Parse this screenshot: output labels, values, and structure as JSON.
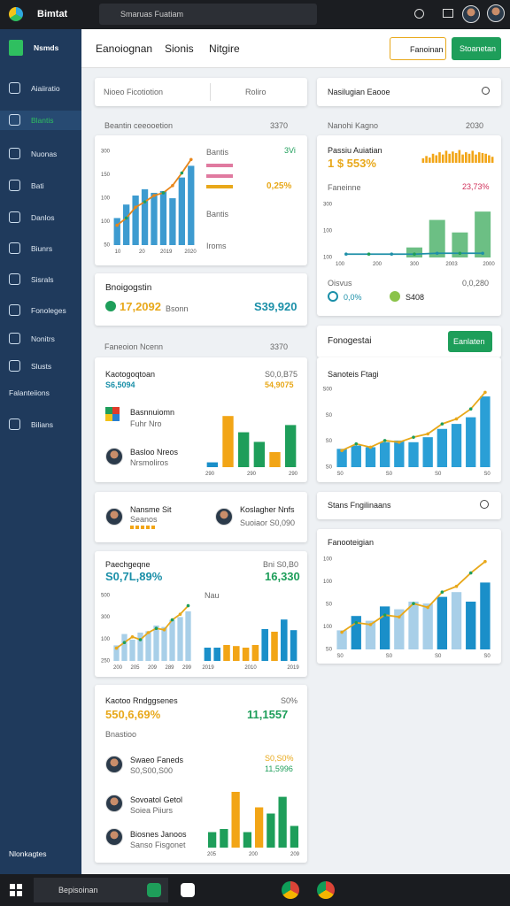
{
  "topbar": {
    "app": "Bimtat",
    "search": "Smaruas Fuatiam"
  },
  "sidebar": {
    "title": "Nsmds",
    "items": [
      "Aiaiiratio",
      "Blantis",
      "Nuonas",
      "Bati",
      "Danlos",
      "Biunrs",
      "Sisrals",
      "Fonoleges",
      "Nonitrs",
      "Slusts",
      "Falanteiions",
      "Bilians"
    ],
    "footer": "Nlonkagtes"
  },
  "header": {
    "tabs": [
      "Eanoiognan",
      "Sionis",
      "Nitgire"
    ],
    "button_outline": "Fanoinan",
    "button_primary": "Stoanetan"
  },
  "left": {
    "filter": {
      "field": "Nioeo Ficotiotion",
      "select": "Roliro"
    },
    "section1": {
      "title": "Beantin ceeooetion",
      "value": "3370"
    },
    "card1": {
      "legend": [
        "Bantis",
        "Bantis",
        "Iroms"
      ],
      "value": "0,25%",
      "kpi": "3Vi",
      "chart": {
        "bars": [
          30,
          45,
          55,
          62,
          58,
          60,
          52,
          75,
          88
        ],
        "bar_color": "#3d9bd0",
        "line": [
          22,
          30,
          42,
          48,
          55,
          58,
          66,
          80,
          95
        ],
        "line_color": "#e8861a",
        "ylim": [
          0,
          110
        ],
        "yticks": [
          "300",
          "150",
          "100",
          "100",
          "50"
        ],
        "xticks": [
          "10",
          "20",
          "2019",
          "2020"
        ]
      }
    },
    "card2": {
      "title": "Bnoigogstin",
      "value": "17,2092",
      "note": "Bsonn",
      "amount": "S39,920"
    },
    "section2": {
      "title": "Faneoion Ncenn",
      "value": "3370"
    },
    "card3": {
      "title": "Kaotogoqtoan",
      "value": "S6,5094",
      "right_label": "S0,0,B75",
      "right_value": "54,9075",
      "items": [
        {
          "name": "Basnnuiomn",
          "sub": "Fuhr Nro"
        },
        {
          "name": "Basloo Nreos",
          "sub": "Nrsmoliros"
        }
      ],
      "chart": {
        "bars": [
          8,
          85,
          58,
          42,
          25,
          70
        ],
        "bar_colors": [
          "#1a8fc9",
          "#f2a516",
          "#1e9e5a",
          "#1e9e5a",
          "#f2a516",
          "#1e9e5a"
        ],
        "ylim": [
          0,
          100
        ],
        "xticks": [
          "290",
          "290",
          "290"
        ]
      }
    },
    "card4": {
      "people": [
        {
          "name": "Nansme Sit",
          "sub": "Seanos"
        },
        {
          "name": "Koslagher Nnfs",
          "sub": "Suoiaor S0,090"
        }
      ]
    },
    "card5": {
      "title": "Paechgeqne",
      "value": "S0,7L,89%",
      "right_label": "Bni S0,B0",
      "right_value": "16,330",
      "sub": "Nau",
      "chart_a": {
        "bars": [
          22,
          38,
          30,
          40,
          42,
          50,
          48,
          58,
          62,
          70
        ],
        "bar_color": "#a8cfe8",
        "line": [
          18,
          26,
          34,
          30,
          40,
          46,
          44,
          58,
          66,
          78
        ],
        "line_color": "#e8a81a",
        "ylim": [
          0,
          100
        ],
        "yticks": [
          "500",
          "300",
          "100",
          "250"
        ],
        "xticks": [
          "200",
          "205",
          "209",
          "289",
          "299"
        ]
      },
      "chart_b": {
        "bars": [
          25,
          25,
          30,
          28,
          25,
          30,
          60,
          55,
          78,
          58
        ],
        "bar_colors": [
          "#1a8fc9",
          "#1a8fc9",
          "#f2a516",
          "#f2a516",
          "#f2a516",
          "#f2a516",
          "#1a8fc9",
          "#f2a516",
          "#1a8fc9",
          "#1a8fc9"
        ],
        "ylim": [
          0,
          100
        ],
        "xticks": [
          "2019",
          "2010",
          "2019"
        ]
      }
    },
    "card6": {
      "title": "Kaotoo Rndggsenes",
      "value": "550,6,69%",
      "right_label": "S0%",
      "right_value": "11,1557",
      "sub": "Bnastioo",
      "side": [
        "S0,S0%",
        "11,5996"
      ],
      "people": [
        {
          "name": "Swaeo Faneds",
          "sub": "S0,S00,S00"
        },
        {
          "name": "Sovoatol Getol",
          "sub": "Soiea Piiurs"
        },
        {
          "name": "Biosnes Janoos",
          "sub": "Sanso Fisgonet"
        }
      ],
      "chart": {
        "bars": [
          25,
          30,
          90,
          25,
          65,
          55,
          82,
          35
        ],
        "bar_colors": [
          "#1e9e5a",
          "#1e9e5a",
          "#f2a516",
          "#1e9e5a",
          "#f2a516",
          "#1e9e5a",
          "#1e9e5a",
          "#1e9e5a"
        ],
        "ylim": [
          0,
          100
        ],
        "xticks": [
          "205",
          "200",
          "209"
        ]
      }
    }
  },
  "right": {
    "search": "Nasilugian Eaooe",
    "section1": {
      "title": "Nanohi Kagno",
      "value": "2030"
    },
    "card1": {
      "title": "Passiu Auiatian",
      "value": "1 $ 553%",
      "label2": "Faneinne",
      "value2": "23,73%",
      "foot_left": "Oisvus",
      "foot_right": "0,0,280",
      "chips": [
        "0,0%",
        "S408"
      ],
      "spark": {
        "bars": [
          30,
          45,
          35,
          60,
          50,
          70,
          55,
          80,
          60,
          75,
          65,
          85,
          55,
          70,
          60,
          80,
          55,
          70,
          65,
          60,
          50,
          40
        ],
        "bar_color": "#f2a516",
        "ylim": [
          0,
          100
        ]
      },
      "chart": {
        "bars": [
          0,
          0,
          0,
          12,
          45,
          30,
          55
        ],
        "bar_color": "#6cbf84",
        "line": [
          4,
          4,
          4,
          4,
          5,
          5,
          5
        ],
        "line_color": "#1f8fa8",
        "ylim": [
          0,
          70
        ],
        "yticks": [
          "300",
          "100",
          "100"
        ],
        "xticks": [
          "100",
          "200",
          "300",
          "2003",
          "2000"
        ]
      }
    },
    "card2": {
      "title": "Fonogestai",
      "button": "Eanlaten"
    },
    "card3": {
      "title": "Sanoteis Ftagi",
      "chart": {
        "bars": [
          22,
          26,
          24,
          30,
          32,
          30,
          36,
          46,
          52,
          60,
          85
        ],
        "bar_color": "#2a9fd6",
        "line": [
          20,
          28,
          24,
          32,
          30,
          36,
          40,
          52,
          58,
          70,
          90
        ],
        "line_color": "#e8a81a",
        "ylim": [
          0,
          100
        ],
        "yticks": [
          "S00",
          "S0",
          "S0",
          "S0"
        ],
        "xticks": [
          "S0",
          "S0",
          "S0",
          "S0"
        ]
      }
    },
    "card4": {
      "title": "Stans Fngilinaans"
    },
    "card5": {
      "title": "Fanooteigian",
      "chart": {
        "bars": [
          20,
          35,
          30,
          45,
          42,
          50,
          48,
          55,
          60,
          50,
          70
        ],
        "bar_colors": [
          "#a8cfe8",
          "#1a8fc9",
          "#a8cfe8",
          "#1a8fc9",
          "#a8cfe8",
          "#a8cfe8",
          "#a8cfe8",
          "#1a8fc9",
          "#a8cfe8",
          "#1a8fc9",
          "#1a8fc9"
        ],
        "line": [
          18,
          28,
          26,
          36,
          34,
          48,
          44,
          60,
          66,
          80,
          92
        ],
        "line_color": "#e8a81a",
        "ylim": [
          0,
          100
        ],
        "yticks": [
          "100",
          "100",
          "S0",
          "100",
          "S0"
        ],
        "xticks": [
          "S0",
          "S0",
          "S0",
          "S0"
        ]
      }
    }
  },
  "taskbar": {
    "search": "Bepisoinan"
  }
}
